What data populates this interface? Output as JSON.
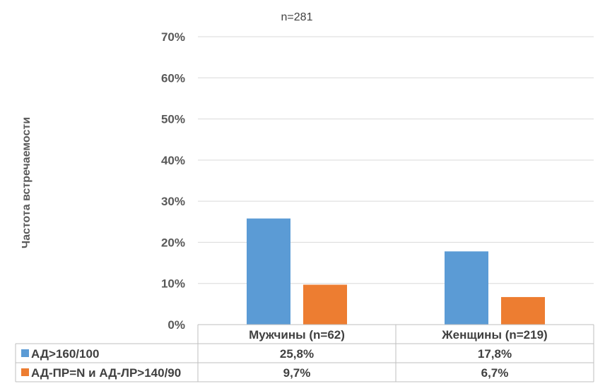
{
  "chart_data": {
    "type": "bar",
    "subtitle": "n=281",
    "ylabel": "Частота встречаемости",
    "xlabel": "",
    "categories": [
      "Мужчины (n=62)",
      "Женщины (n=219)"
    ],
    "ylim": [
      0,
      70
    ],
    "yticks": [
      0,
      10,
      20,
      30,
      40,
      50,
      60,
      70
    ],
    "ytick_labels": [
      "0%",
      "10%",
      "20%",
      "30%",
      "40%",
      "50%",
      "60%",
      "70%"
    ],
    "grid": true,
    "legend": "data-table-left",
    "series": [
      {
        "name": "АД>160/100",
        "values": [
          25.8,
          17.8
        ],
        "labels": [
          "25,8%",
          "17,8%"
        ],
        "color": "#5B9BD5"
      },
      {
        "name": "АД-ПР=N и АД-ЛР>140/90",
        "values": [
          9.7,
          6.7
        ],
        "labels": [
          "9,7%",
          "6,7%"
        ],
        "color": "#ED7D31"
      }
    ]
  }
}
